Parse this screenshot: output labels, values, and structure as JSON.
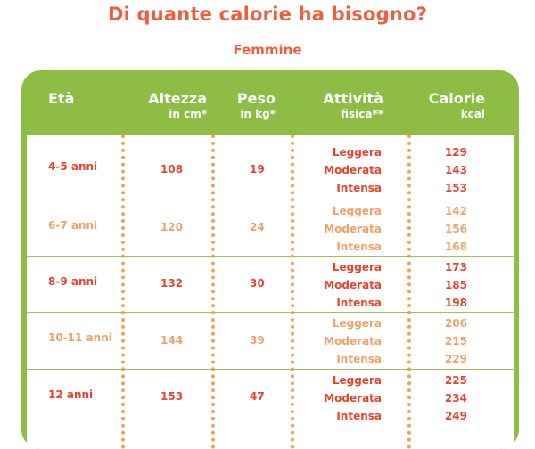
{
  "title": "Di quante calorie ha bisogno?",
  "subtitle": "Femmine",
  "colors": {
    "title": "#f05c3c",
    "header_bg": "#8dbd45",
    "divider": "#f4a259",
    "row_dark": "#e8442d",
    "row_light": "#f4a06a"
  },
  "headers": {
    "age": "Età",
    "height": "Altezza",
    "height_unit": "in cm*",
    "weight": "Peso",
    "weight_unit": "in kg*",
    "activity": "Attività",
    "activity_unit": "fisica**",
    "calories": "Calorie",
    "calories_unit": "kcal"
  },
  "rows": [
    {
      "age": "4-5 anni",
      "height": "108",
      "weight": "19",
      "activities": [
        "Leggera",
        "Moderata",
        "Intensa"
      ],
      "calories": [
        "129",
        "143",
        "153"
      ]
    },
    {
      "age": "6-7 anni",
      "height": "120",
      "weight": "24",
      "activities": [
        "Leggera",
        "Moderata",
        "Intensa"
      ],
      "calories": [
        "142",
        "156",
        "168"
      ]
    },
    {
      "age": "8-9 anni",
      "height": "132",
      "weight": "30",
      "activities": [
        "Leggera",
        "Moderata",
        "Intensa"
      ],
      "calories": [
        "173",
        "185",
        "198"
      ]
    },
    {
      "age": "10-11 anni",
      "height": "144",
      "weight": "39",
      "activities": [
        "Leggera",
        "Moderata",
        "Intensa"
      ],
      "calories": [
        "206",
        "215",
        "229"
      ]
    },
    {
      "age": "12 anni",
      "height": "153",
      "weight": "47",
      "activities": [
        "Leggera",
        "Moderata",
        "Intensa"
      ],
      "calories": [
        "225",
        "234",
        "249"
      ]
    }
  ]
}
